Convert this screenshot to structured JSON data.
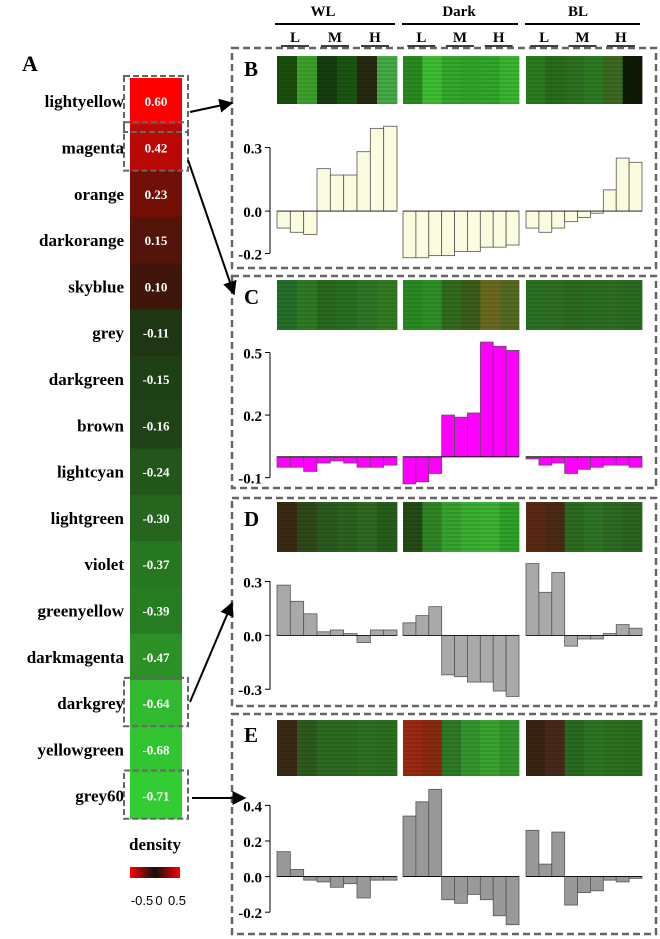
{
  "chart_data": [
    {
      "type": "heatmap",
      "panel": "A",
      "modules": [
        {
          "name": "lightyellow",
          "value": 0.6
        },
        {
          "name": "magenta",
          "value": 0.42
        },
        {
          "name": "orange",
          "value": 0.23
        },
        {
          "name": "darkorange",
          "value": 0.15
        },
        {
          "name": "skyblue",
          "value": 0.1
        },
        {
          "name": "grey",
          "value": -0.11
        },
        {
          "name": "darkgreen",
          "value": -0.15
        },
        {
          "name": "brown",
          "value": -0.16
        },
        {
          "name": "lightcyan",
          "value": -0.24
        },
        {
          "name": "lightgreen",
          "value": -0.3
        },
        {
          "name": "violet",
          "value": -0.37
        },
        {
          "name": "greenyellow",
          "value": -0.39
        },
        {
          "name": "darkmagenta",
          "value": -0.47
        },
        {
          "name": "darkgrey",
          "value": -0.64
        },
        {
          "name": "yellowgreen",
          "value": -0.68
        },
        {
          "name": "grey60",
          "value": -0.71
        }
      ],
      "value_labels": [
        "0.60",
        "0.42",
        "0.23",
        "0.15",
        "0.10",
        "-0.11",
        "-0.15",
        "-0.16",
        "-0.24",
        "-0.30",
        "-0.37",
        "-0.39",
        "-0.47",
        "-0.64",
        "-0.68",
        "-0.71"
      ],
      "xlabel": "density",
      "colorbar_labels": [
        "-0.5",
        "0",
        "0.5"
      ],
      "colors": {
        "high": "#ff0000",
        "mid": "#1a1a0d",
        "low": "#33cc33"
      }
    },
    {
      "type": "bar",
      "panel": "B",
      "module": "lightyellow",
      "color": "#fbfbe0",
      "values": [
        [
          -0.08,
          -0.1,
          -0.11
        ],
        [
          0.2,
          0.17,
          0.17
        ],
        [
          0.28,
          0.39,
          0.4
        ],
        [
          -0.22,
          -0.22,
          -0.21
        ],
        [
          -0.21,
          -0.19,
          -0.19
        ],
        [
          -0.17,
          -0.17,
          -0.16
        ],
        [
          -0.08,
          -0.1,
          -0.08
        ],
        [
          -0.05,
          -0.03,
          -0.01
        ],
        [
          0.1,
          0.25,
          0.23
        ]
      ],
      "ticks": [
        "0.3",
        "0.0",
        "-0.2"
      ],
      "tick_values": [
        0.3,
        0.0,
        -0.2
      ],
      "ylim": [
        -0.24,
        0.42
      ]
    },
    {
      "type": "bar",
      "panel": "C",
      "module": "magenta",
      "color": "#ff00ff",
      "values": [
        [
          -0.05,
          -0.05,
          -0.07
        ],
        [
          -0.03,
          -0.02,
          -0.03
        ],
        [
          -0.05,
          -0.05,
          -0.04
        ],
        [
          -0.13,
          -0.12,
          -0.08
        ],
        [
          0.2,
          0.19,
          0.21
        ],
        [
          0.55,
          0.53,
          0.51
        ],
        [
          -0.01,
          -0.04,
          -0.03
        ],
        [
          -0.08,
          -0.06,
          -0.05
        ],
        [
          -0.04,
          -0.04,
          -0.05
        ]
      ],
      "ticks": [
        "0.5",
        "0.2",
        "-0.1"
      ],
      "tick_values": [
        0.5,
        0.2,
        -0.1
      ],
      "ylim": [
        -0.14,
        0.56
      ]
    },
    {
      "type": "bar",
      "panel": "D",
      "module": "darkgrey",
      "color": "#a9a9a9",
      "values": [
        [
          0.28,
          0.19,
          0.12
        ],
        [
          0.02,
          0.03,
          0.01
        ],
        [
          -0.04,
          0.03,
          0.03
        ],
        [
          0.07,
          0.11,
          0.16
        ],
        [
          -0.22,
          -0.23,
          -0.26
        ],
        [
          -0.26,
          -0.31,
          -0.34
        ],
        [
          0.4,
          0.24,
          0.35
        ],
        [
          -0.06,
          -0.02,
          -0.02
        ],
        [
          0.01,
          0.06,
          0.04
        ]
      ],
      "ticks": [
        "0.3",
        "0.0",
        "-0.3"
      ],
      "tick_values": [
        0.3,
        0.0,
        -0.3
      ],
      "ylim": [
        -0.36,
        0.42
      ]
    },
    {
      "type": "bar",
      "panel": "E",
      "module": "grey60",
      "color": "#999999",
      "values": [
        [
          0.14,
          0.04,
          -0.02
        ],
        [
          -0.03,
          -0.06,
          -0.04
        ],
        [
          -0.12,
          -0.02,
          -0.02
        ],
        [
          0.34,
          0.42,
          0.49
        ],
        [
          -0.13,
          -0.15,
          -0.1
        ],
        [
          -0.13,
          -0.22,
          -0.27
        ],
        [
          0.26,
          0.07,
          0.25
        ],
        [
          -0.16,
          -0.09,
          -0.08
        ],
        [
          -0.02,
          -0.03,
          -0.01
        ]
      ],
      "ticks": [
        "0.4",
        "0.2",
        "0.0",
        "-0.2"
      ],
      "tick_values": [
        0.4,
        0.2,
        0.0,
        -0.2
      ],
      "ylim": [
        -0.3,
        0.52
      ]
    }
  ],
  "conditions": [
    {
      "name": "WL",
      "levels": [
        "L",
        "M",
        "H"
      ]
    },
    {
      "name": "Dark",
      "levels": [
        "L",
        "M",
        "H"
      ]
    },
    {
      "name": "BL",
      "levels": [
        "L",
        "M",
        "H"
      ]
    }
  ],
  "heatmap_strips": {
    "B": [
      [
        "#1a4f0e",
        "#3da02a",
        "#163d10",
        "#1a5512",
        "#2a2a10",
        "#44aa44"
      ],
      [
        "#2a8a20",
        "#3dbd30",
        "#33a82a",
        "#30a428",
        "#2fa52a",
        "#38b531"
      ],
      [
        "#2a7a1e",
        "#286c1c",
        "#2d6f20",
        "#2d7a22",
        "#3c6a22",
        "#0e1a06"
      ]
    ],
    "C": [
      [
        "#24702a",
        "#2e7a24",
        "#2a6a1e",
        "#267020",
        "#2f7426",
        "#337b22"
      ],
      [
        "#2a8a22",
        "#2f8f27",
        "#326c1e",
        "#3b5e1c",
        "#6b6a1e",
        "#556a20"
      ],
      [
        "#2a7022",
        "#2f6e22",
        "#2c6a1e",
        "#2b6f22",
        "#2f6e21",
        "#2a6c20"
      ]
    ],
    "D": [
      [
        "#3a2a12",
        "#2f4a18",
        "#2a5a1e",
        "#2c621f",
        "#2e6a22",
        "#285e1c"
      ],
      [
        "#244a16",
        "#2f8526",
        "#38a22e",
        "#3cb032",
        "#3cb332",
        "#2fa029"
      ],
      [
        "#5a2a14",
        "#4a2a12",
        "#2d6a22",
        "#2f7424",
        "#2e6b22",
        "#2c6421"
      ]
    ],
    "E": [
      [
        "#3a2a14",
        "#2f5a1e",
        "#2e6a22",
        "#2c6a20",
        "#2d7022",
        "#2b6e20"
      ],
      [
        "#9a2a12",
        "#8a2a10",
        "#2f7a26",
        "#36962e",
        "#3aa42f",
        "#33952c"
      ],
      [
        "#3a2412",
        "#48281a",
        "#2a6a20",
        "#2c7524",
        "#2d7022",
        "#2b6e1f"
      ]
    ]
  }
}
